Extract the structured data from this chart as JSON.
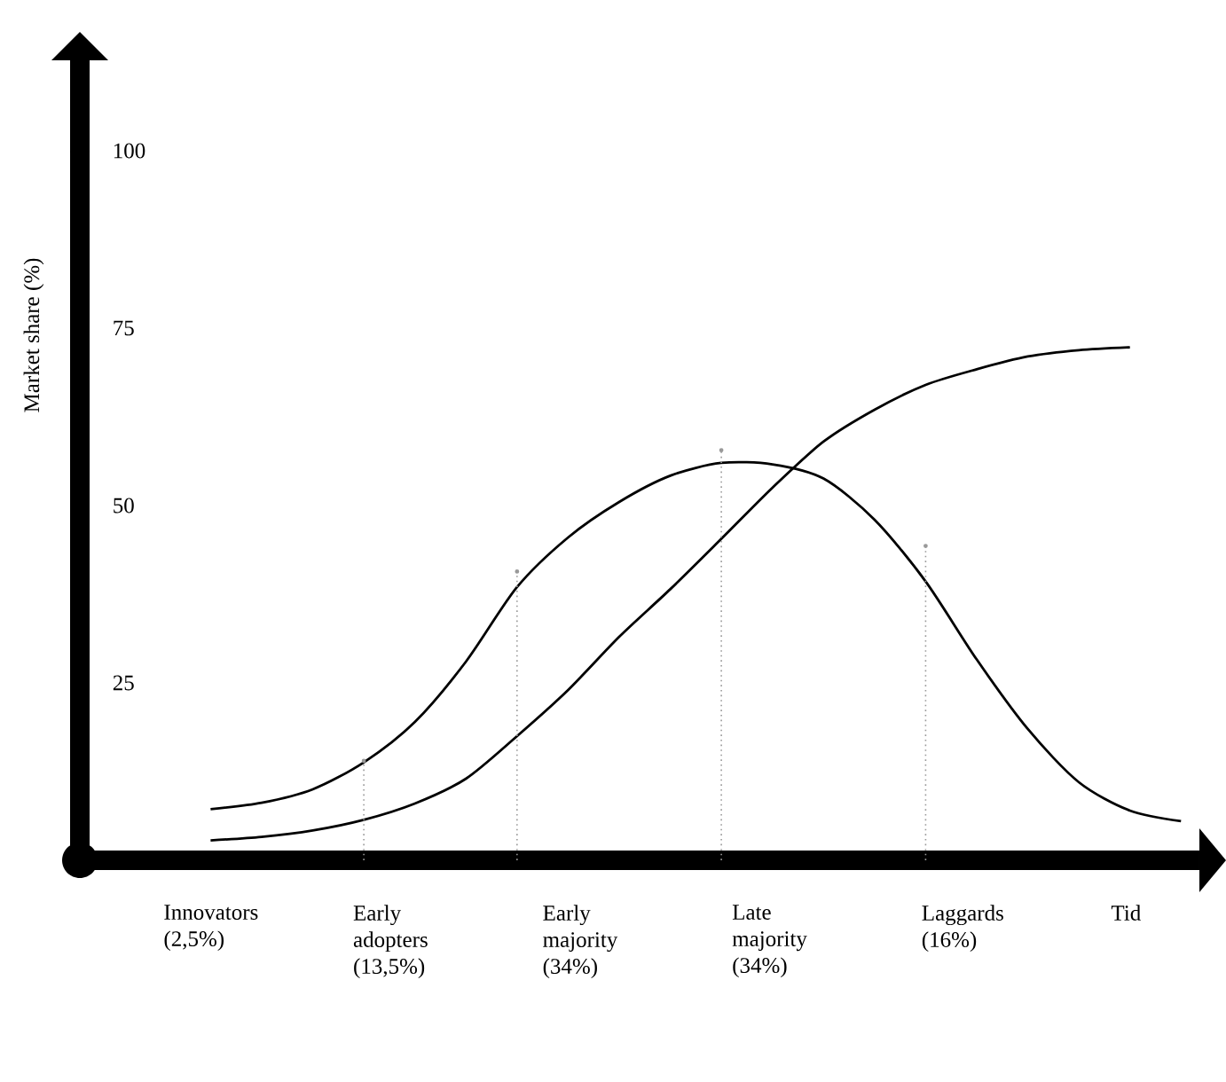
{
  "chart_data": {
    "type": "line",
    "ylabel": "Market share (%)",
    "ylim": [
      0,
      100
    ],
    "marker": "none",
    "yticks": [
      25,
      50,
      75,
      100
    ],
    "categories": [
      null,
      null,
      null,
      null,
      null,
      null,
      null,
      null,
      null,
      null,
      null,
      null,
      null,
      null,
      null,
      null,
      null,
      null,
      null,
      null
    ],
    "annotations": [
      "Innovators (2,5%)",
      "Early adopters (13,5%)",
      "Early majority (34%)",
      "Late majority (34%)",
      "Laggards (16%)",
      "Tid"
    ],
    "series": [
      {
        "color": "#000000",
        "line_style": "solid",
        "values": [
          7.2,
          8.1,
          10,
          13.8,
          19.5,
          28,
          38.5,
          45.5,
          50.5,
          54.2,
          56,
          55.8,
          53.8,
          48,
          39.3,
          28.3,
          18.5,
          11,
          7,
          5.5
        ]
      },
      {
        "color": "#000000",
        "line_style": "solid",
        "values": [
          2.8,
          3.3,
          4.2,
          5.7,
          8,
          11.5,
          17.5,
          24,
          31.5,
          38.2,
          45.3,
          52.5,
          59,
          63.5,
          67,
          69.2,
          71,
          71.9,
          72.3,
          null
        ]
      },
      {
        "type": "lollipop",
        "marker": "circle",
        "color": "#999999",
        "line_style": "dotted",
        "values": [
          null,
          null,
          null,
          14,
          null,
          null,
          40.7,
          null,
          null,
          null,
          57.8,
          null,
          null,
          null,
          44.3,
          null,
          null,
          null,
          null,
          null
        ]
      }
    ]
  }
}
